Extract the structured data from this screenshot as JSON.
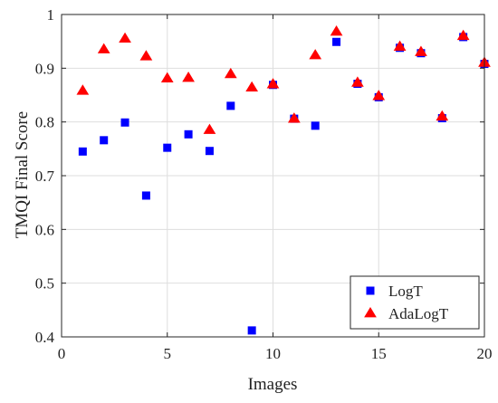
{
  "chart_data": {
    "type": "scatter",
    "xlabel": "Images",
    "ylabel": "TMQI Final Score",
    "xlim": [
      0,
      20
    ],
    "ylim": [
      0.4,
      1.0
    ],
    "xticks": [
      0,
      5,
      10,
      15,
      20
    ],
    "yticks": [
      0.4,
      0.5,
      0.6,
      0.7,
      0.8,
      0.9,
      1.0
    ],
    "xtick_labels": [
      "0",
      "5",
      "10",
      "15",
      "20"
    ],
    "ytick_labels": [
      "0.4",
      "0.5",
      "0.6",
      "0.7",
      "0.8",
      "0.9",
      "1"
    ],
    "grid": true,
    "legend_position": "bottom-right",
    "series": [
      {
        "name": "LogT",
        "marker": "square",
        "color": "#0000ff",
        "x": [
          1,
          2,
          3,
          4,
          5,
          6,
          7,
          8,
          9,
          10,
          11,
          12,
          13,
          14,
          15,
          16,
          17,
          18,
          19,
          20
        ],
        "y": [
          0.745,
          0.766,
          0.799,
          0.663,
          0.752,
          0.777,
          0.746,
          0.83,
          0.412,
          0.869,
          0.806,
          0.793,
          0.949,
          0.871,
          0.846,
          0.938,
          0.928,
          0.807,
          0.958,
          0.908
        ]
      },
      {
        "name": "AdaLogT",
        "marker": "triangle",
        "color": "#ff0000",
        "x": [
          1,
          2,
          3,
          4,
          5,
          6,
          7,
          8,
          9,
          10,
          11,
          12,
          13,
          14,
          15,
          16,
          17,
          18,
          19,
          20
        ],
        "y": [
          0.858,
          0.935,
          0.955,
          0.922,
          0.881,
          0.882,
          0.785,
          0.889,
          0.864,
          0.87,
          0.806,
          0.924,
          0.968,
          0.873,
          0.848,
          0.94,
          0.93,
          0.81,
          0.96,
          0.91
        ]
      }
    ]
  }
}
